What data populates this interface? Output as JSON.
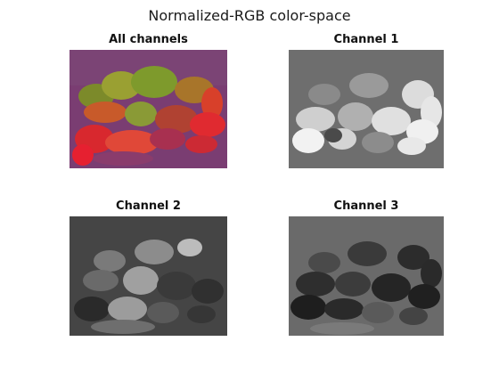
{
  "figure": {
    "title": "Normalized-RGB color-space"
  },
  "panels": [
    {
      "title": "All channels",
      "background": "#7a3d72"
    },
    {
      "title": "Channel 1",
      "background": "#6e6e6e"
    },
    {
      "title": "Channel 2",
      "background": "#454545"
    },
    {
      "title": "Channel 3",
      "background": "#6a6a6a"
    }
  ]
}
